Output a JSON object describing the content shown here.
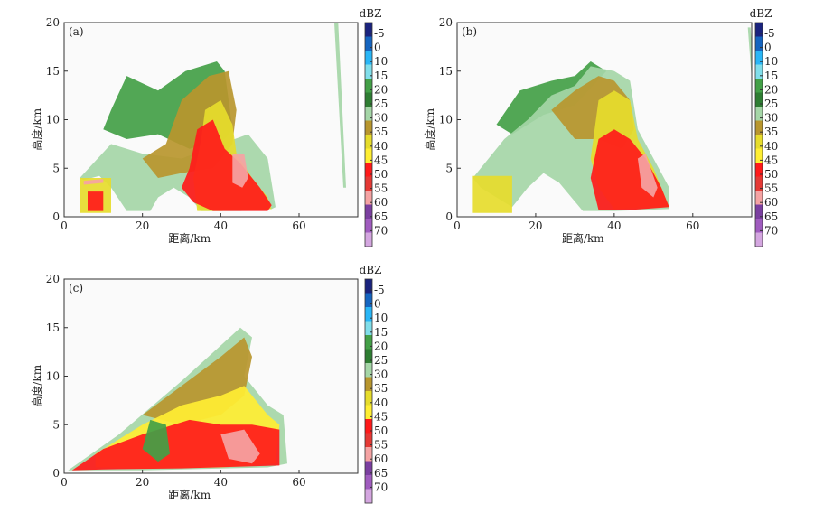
{
  "colors": {
    "frame": "#333333",
    "palette": [
      "#1a237e",
      "#1565c0",
      "#29b6f6",
      "#80deea",
      "#43a047",
      "#2e7d32",
      "#a5d6a7",
      "#b8962e",
      "#e6dc2c",
      "#ffee33",
      "#ff1a1a",
      "#e53935",
      "#f5a3a3",
      "#7b3fa0",
      "#a05cbf",
      "#d4a6e0"
    ]
  },
  "chart_data": [
    {
      "type": "heatmap",
      "panel_label": "(a)",
      "xlabel": "距离/km",
      "ylabel": "高度/km",
      "xlim": [
        0,
        75
      ],
      "ylim": [
        0,
        20
      ],
      "xticks": [
        "0",
        "20",
        "40",
        "60"
      ],
      "yticks": [
        "0",
        "5",
        "10",
        "15",
        "20"
      ],
      "colorbar": {
        "unit": "dBZ",
        "labels": [
          "-5",
          "0",
          "10",
          "15",
          "20",
          "25",
          "30",
          "35",
          "40",
          "45",
          "50",
          "55",
          "60",
          "65",
          "70"
        ]
      },
      "echo_regions": [
        {
          "dbz": 12,
          "polygon": [
            [
              12,
              11
            ],
            [
              16,
              14.5
            ],
            [
              24,
              13
            ],
            [
              31,
              15
            ],
            [
              39,
              16
            ],
            [
              41,
              15
            ],
            [
              43,
              9
            ],
            [
              41,
              8
            ],
            [
              32,
              7
            ],
            [
              24,
              8.5
            ],
            [
              16,
              8
            ],
            [
              10,
              9
            ]
          ]
        },
        {
          "dbz": 20,
          "polygon": [
            [
              4,
              4
            ],
            [
              12,
              7.5
            ],
            [
              20,
              6.5
            ],
            [
              30,
              6
            ],
            [
              40,
              7.5
            ],
            [
              47,
              8.5
            ],
            [
              52,
              6
            ],
            [
              54,
              1
            ],
            [
              53,
              0.8
            ],
            [
              45,
              0.6
            ],
            [
              35,
              0.6
            ],
            [
              32,
              2
            ],
            [
              28,
              3
            ],
            [
              24,
              2
            ],
            [
              22,
              0.6
            ],
            [
              16,
              0.6
            ],
            [
              12,
              3
            ],
            [
              9,
              4.2
            ],
            [
              5,
              3.8
            ]
          ]
        },
        {
          "dbz": 25,
          "polygon": [
            [
              20,
              6
            ],
            [
              26,
              7.5
            ],
            [
              30,
              12
            ],
            [
              37,
              14.5
            ],
            [
              42,
              15
            ],
            [
              44,
              11
            ],
            [
              43,
              7.5
            ],
            [
              38,
              5
            ],
            [
              30,
              4.5
            ],
            [
              24,
              4
            ]
          ]
        },
        {
          "dbz": 32,
          "polygon": [
            [
              36,
              11
            ],
            [
              40,
              12
            ],
            [
              43,
              9.5
            ],
            [
              44,
              6.5
            ],
            [
              48,
              4
            ],
            [
              52,
              2
            ],
            [
              53,
              0.8
            ],
            [
              40,
              0.6
            ],
            [
              34,
              0.6
            ],
            [
              33,
              4
            ],
            [
              35,
              8
            ]
          ]
        },
        {
          "dbz": 40,
          "polygon": [
            [
              32,
              5
            ],
            [
              34,
              9
            ],
            [
              38,
              10
            ],
            [
              41,
              7
            ],
            [
              45,
              5.5
            ],
            [
              50,
              3
            ],
            [
              53,
              1.2
            ],
            [
              52,
              0.6
            ],
            [
              38,
              0.6
            ],
            [
              33,
              1.5
            ],
            [
              30,
              3
            ]
          ]
        },
        {
          "dbz": 50,
          "polygon": [
            [
              43,
              6.5
            ],
            [
              46,
              6.5
            ],
            [
              47,
              4
            ],
            [
              45.5,
              3
            ],
            [
              43,
              3.5
            ]
          ]
        },
        {
          "dbz": 32,
          "polygon": [
            [
              4,
              0.4
            ],
            [
              12,
              0.4
            ],
            [
              12,
              4
            ],
            [
              4,
              4
            ]
          ]
        },
        {
          "dbz": 41,
          "polygon": [
            [
              6,
              0.6
            ],
            [
              10,
              0.6
            ],
            [
              10,
              2.6
            ],
            [
              6,
              2.6
            ]
          ]
        },
        {
          "dbz": 50,
          "polygon": [
            [
              5,
              3.7
            ],
            [
              10,
              3.9
            ],
            [
              10,
              3.5
            ],
            [
              5,
              3.3
            ]
          ]
        },
        {
          "dbz": 20,
          "polygon": [
            [
              69,
              20
            ],
            [
              70,
              20
            ],
            [
              72,
              3
            ],
            [
              71.3,
              3
            ]
          ]
        }
      ]
    },
    {
      "type": "heatmap",
      "panel_label": "(b)",
      "xlabel": "距离/km",
      "ylabel": "高度/km",
      "xlim": [
        0,
        75
      ],
      "ylim": [
        0,
        20
      ],
      "xticks": [
        "0",
        "20",
        "40",
        "60"
      ],
      "yticks": [
        "0",
        "5",
        "10",
        "15",
        "20"
      ],
      "colorbar": {
        "unit": "dBZ",
        "labels": [
          "-5",
          "0",
          "10",
          "15",
          "20",
          "25",
          "30",
          "35",
          "40",
          "45",
          "50",
          "55",
          "60",
          "65",
          "70"
        ]
      },
      "echo_regions": [
        {
          "dbz": 12,
          "polygon": [
            [
              10,
              9.5
            ],
            [
              16,
              13
            ],
            [
              24,
              14
            ],
            [
              30,
              14.5
            ],
            [
              34,
              16
            ],
            [
              38,
              15
            ],
            [
              30,
              11.5
            ],
            [
              22,
              10.5
            ],
            [
              14,
              8.5
            ]
          ]
        },
        {
          "dbz": 20,
          "polygon": [
            [
              4,
              4
            ],
            [
              12,
              8
            ],
            [
              18,
              10
            ],
            [
              24,
              12.5
            ],
            [
              30,
              13.5
            ],
            [
              34,
              15.5
            ],
            [
              40,
              15
            ],
            [
              44,
              14
            ],
            [
              46,
              9
            ],
            [
              50,
              6
            ],
            [
              54,
              3
            ],
            [
              54,
              0.8
            ],
            [
              40,
              0.6
            ],
            [
              32,
              0.6
            ],
            [
              26,
              3.5
            ],
            [
              22,
              4.5
            ],
            [
              18,
              3
            ],
            [
              14,
              1
            ],
            [
              10,
              2
            ],
            [
              6,
              3
            ]
          ]
        },
        {
          "dbz": 26,
          "polygon": [
            [
              24,
              11
            ],
            [
              30,
              13
            ],
            [
              36,
              14.5
            ],
            [
              40,
              14
            ],
            [
              44,
              12
            ],
            [
              45,
              9
            ],
            [
              42,
              7
            ],
            [
              36,
              8
            ],
            [
              30,
              8
            ]
          ]
        },
        {
          "dbz": 33,
          "polygon": [
            [
              36,
              12
            ],
            [
              40,
              13
            ],
            [
              44,
              12
            ],
            [
              46,
              8
            ],
            [
              50,
              5
            ],
            [
              54,
              1
            ],
            [
              40,
              0.8
            ],
            [
              36,
              3
            ],
            [
              34,
              6
            ]
          ]
        },
        {
          "dbz": 40,
          "polygon": [
            [
              34,
              4
            ],
            [
              36,
              8
            ],
            [
              40,
              9
            ],
            [
              44,
              8
            ],
            [
              48,
              6
            ],
            [
              52,
              3
            ],
            [
              54,
              1
            ],
            [
              44,
              0.7
            ],
            [
              36,
              0.7
            ]
          ]
        },
        {
          "dbz": 50,
          "polygon": [
            [
              46,
              6
            ],
            [
              48,
              6.5
            ],
            [
              51,
              3
            ],
            [
              50,
              2
            ],
            [
              47,
              3
            ]
          ]
        },
        {
          "dbz": 32,
          "polygon": [
            [
              4,
              0.4
            ],
            [
              14,
              0.4
            ],
            [
              14,
              4.2
            ],
            [
              4,
              4.2
            ]
          ]
        },
        {
          "dbz": 20,
          "polygon": [
            [
              74,
              19.5
            ],
            [
              74.7,
              19.5
            ],
            [
              76,
              12
            ],
            [
              75.4,
              12
            ]
          ]
        }
      ]
    },
    {
      "type": "heatmap",
      "panel_label": "(c)",
      "xlabel": "距离/km",
      "ylabel": "高度/km",
      "xlim": [
        0,
        75
      ],
      "ylim": [
        0,
        20
      ],
      "xticks": [
        "0",
        "20",
        "40",
        "60"
      ],
      "yticks": [
        "0",
        "5",
        "10",
        "15",
        "20"
      ],
      "colorbar": {
        "unit": "dBZ",
        "labels": [
          "-5",
          "0",
          "10",
          "15",
          "20",
          "25",
          "30",
          "35",
          "40",
          "45",
          "50",
          "55",
          "60",
          "65",
          "70"
        ]
      },
      "echo_regions": [
        {
          "dbz": 22,
          "polygon": [
            [
              1,
              0.3
            ],
            [
              14,
              4
            ],
            [
              30,
              9.5
            ],
            [
              45,
              15
            ],
            [
              48,
              14
            ],
            [
              46,
              10
            ],
            [
              52,
              7
            ],
            [
              56,
              6
            ],
            [
              57,
              1
            ],
            [
              52,
              0.6
            ],
            [
              20,
              0.3
            ]
          ]
        },
        {
          "dbz": 28,
          "polygon": [
            [
              20,
              6
            ],
            [
              30,
              9
            ],
            [
              40,
              12
            ],
            [
              46,
              14
            ],
            [
              48,
              12
            ],
            [
              46,
              8
            ],
            [
              40,
              6
            ],
            [
              30,
              5
            ]
          ]
        },
        {
          "dbz": 35,
          "polygon": [
            [
              8,
              2
            ],
            [
              20,
              5
            ],
            [
              30,
              7
            ],
            [
              40,
              8
            ],
            [
              46,
              9
            ],
            [
              52,
              6
            ],
            [
              55,
              5
            ],
            [
              54,
              1
            ],
            [
              40,
              0.6
            ],
            [
              20,
              0.5
            ],
            [
              8,
              0.6
            ]
          ]
        },
        {
          "dbz": 42,
          "polygon": [
            [
              2,
              0.3
            ],
            [
              10,
              2.5
            ],
            [
              20,
              4
            ],
            [
              32,
              5.5
            ],
            [
              40,
              5
            ],
            [
              48,
              5
            ],
            [
              55,
              4.5
            ],
            [
              55,
              0.8
            ],
            [
              30,
              0.5
            ],
            [
              10,
              0.4
            ]
          ]
        },
        {
          "dbz": 50,
          "polygon": [
            [
              40,
              4
            ],
            [
              46,
              4.5
            ],
            [
              50,
              2
            ],
            [
              48,
              1
            ],
            [
              42,
              1.5
            ]
          ]
        },
        {
          "dbz": 12,
          "polygon": [
            [
              22,
              5.5
            ],
            [
              26,
              5
            ],
            [
              27,
              2
            ],
            [
              24,
              1.2
            ],
            [
              20,
              2.5
            ]
          ]
        }
      ]
    }
  ]
}
